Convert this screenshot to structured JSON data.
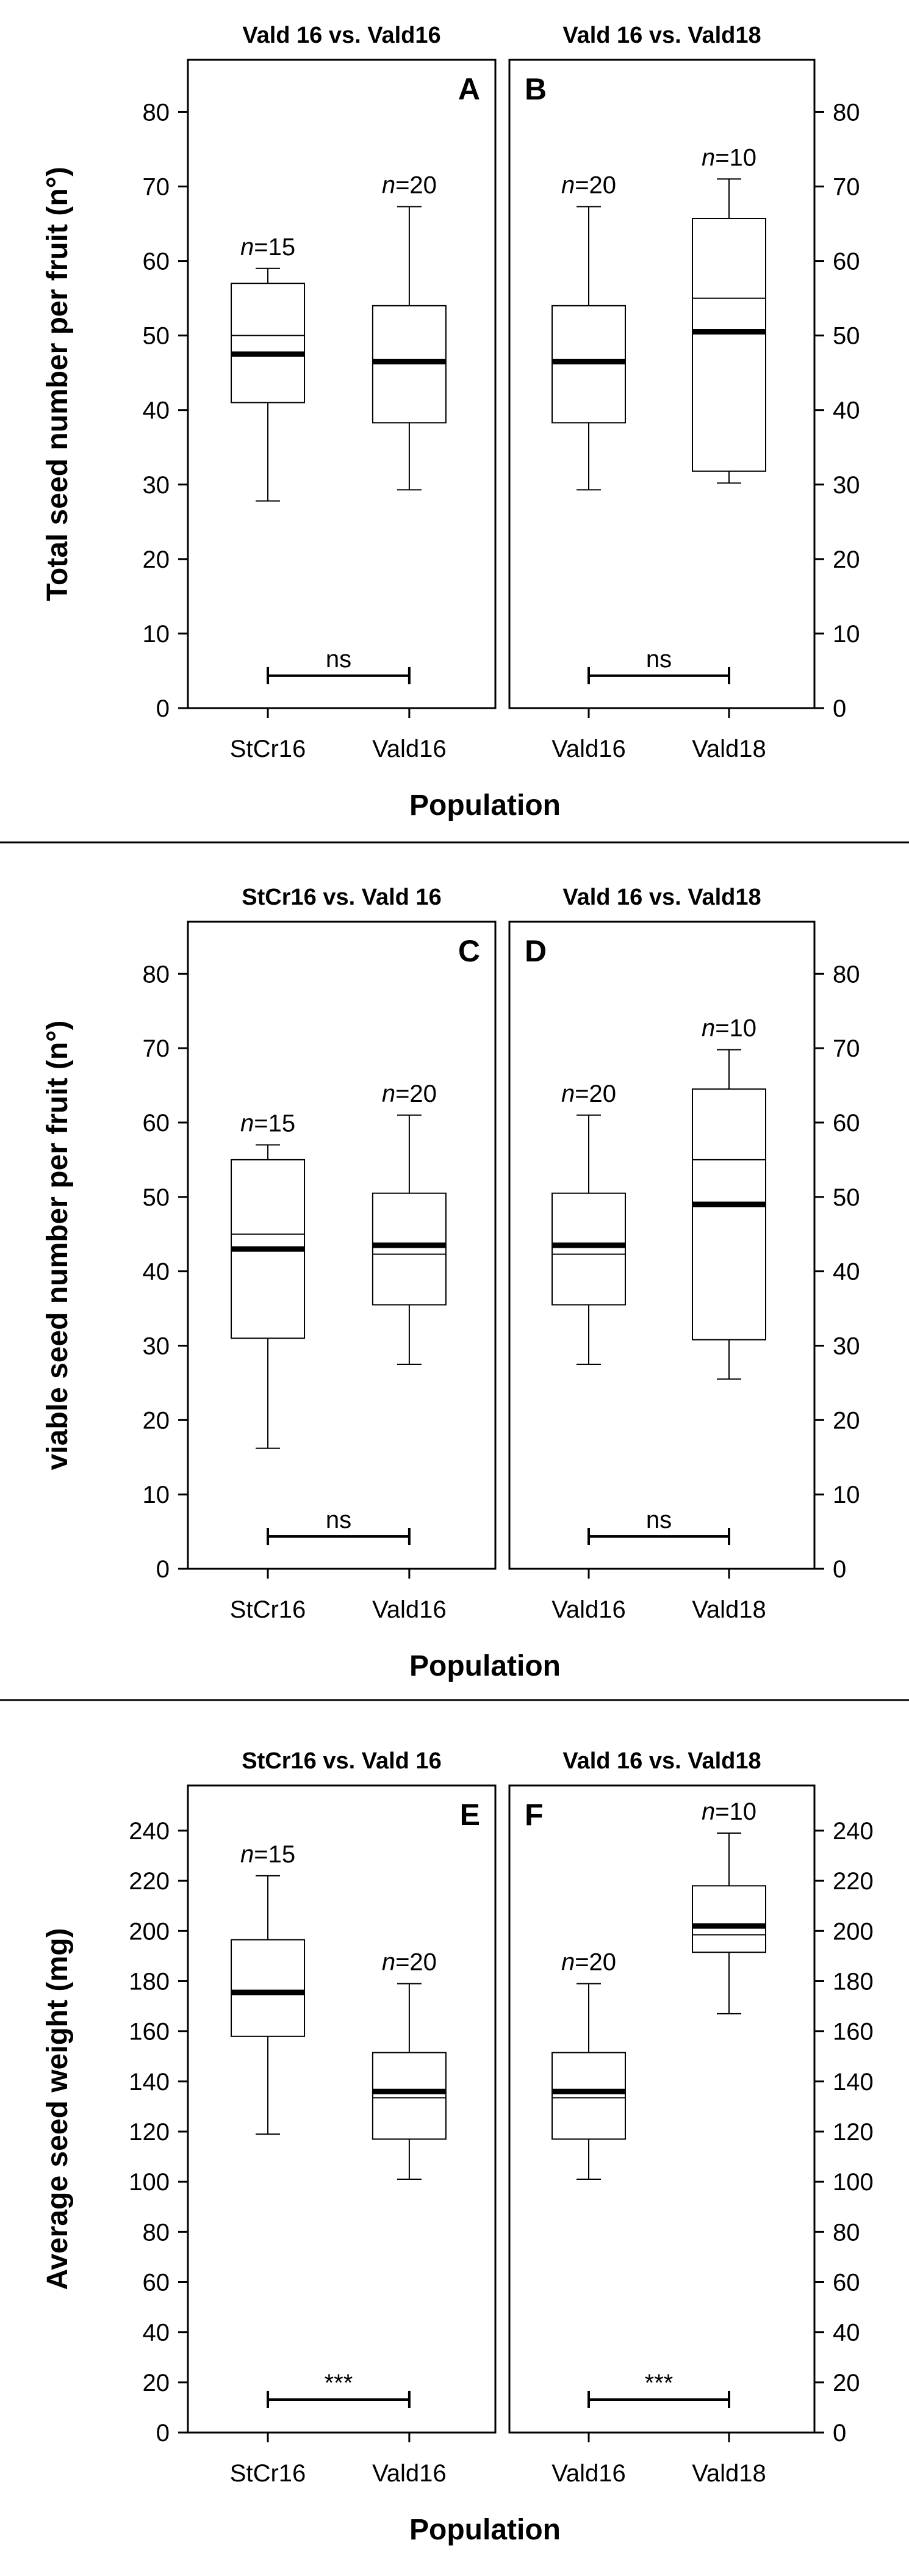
{
  "chart_data": [
    {
      "type": "boxplot",
      "ylabel": "Total seed number per fruit (n°)",
      "xlabel": "Population",
      "ylim": [
        0,
        87
      ],
      "yticks": [
        0,
        10,
        20,
        30,
        40,
        50,
        60,
        70,
        80
      ],
      "panels": [
        {
          "title": "Vald 16 vs. Vald16",
          "letter": "A",
          "significance": "ns",
          "boxes": [
            {
              "category": "StCr16",
              "n_label": "n=15",
              "n_prefix": "n",
              "n_value": "=15",
              "whisker_low": 27.8,
              "q1": 41.0,
              "median": 50.0,
              "mean": 47.5,
              "q3": 57.0,
              "whisker_high": 59.0
            },
            {
              "category": "Vald16",
              "n_label": "n=20",
              "n_prefix": "n",
              "n_value": "=20",
              "whisker_low": 29.3,
              "q1": 38.3,
              "median": 46.5,
              "mean": 46.5,
              "q3": 54.0,
              "whisker_high": 67.3
            }
          ]
        },
        {
          "title": "Vald 16 vs. Vald18",
          "letter": "B",
          "significance": "ns",
          "boxes": [
            {
              "category": "Vald16",
              "n_label": "n=20",
              "n_prefix": "n",
              "n_value": "=20",
              "whisker_low": 29.3,
              "q1": 38.3,
              "median": 46.5,
              "mean": 46.5,
              "q3": 54.0,
              "whisker_high": 67.3
            },
            {
              "category": "Vald18",
              "n_label": "n=10",
              "n_prefix": "n",
              "n_value": "=10",
              "whisker_low": 30.2,
              "q1": 31.8,
              "median": 55.0,
              "mean": 50.5,
              "q3": 65.7,
              "whisker_high": 71.0
            }
          ]
        }
      ]
    },
    {
      "type": "boxplot",
      "ylabel": "viable seed number per fruit (n°)",
      "xlabel": "Population",
      "ylim": [
        0,
        87
      ],
      "yticks": [
        0,
        10,
        20,
        30,
        40,
        50,
        60,
        70,
        80
      ],
      "panels": [
        {
          "title": "StCr16 vs. Vald 16",
          "letter": "C",
          "significance": "ns",
          "boxes": [
            {
              "category": "StCr16",
              "n_label": "n=15",
              "n_prefix": "n",
              "n_value": "=15",
              "whisker_low": 16.2,
              "q1": 31.0,
              "median": 45.0,
              "mean": 43.0,
              "q3": 55.0,
              "whisker_high": 57.0
            },
            {
              "category": "Vald16",
              "n_label": "n=20",
              "n_prefix": "n",
              "n_value": "=20",
              "whisker_low": 27.5,
              "q1": 35.5,
              "median": 42.3,
              "mean": 43.5,
              "q3": 50.5,
              "whisker_high": 61.0
            }
          ]
        },
        {
          "title": "Vald 16 vs. Vald18",
          "letter": "D",
          "significance": "ns",
          "boxes": [
            {
              "category": "Vald16",
              "n_label": "n=20",
              "n_prefix": "n",
              "n_value": "=20",
              "whisker_low": 27.5,
              "q1": 35.5,
              "median": 42.3,
              "mean": 43.5,
              "q3": 50.5,
              "whisker_high": 61.0
            },
            {
              "category": "Vald18",
              "n_label": "n=10",
              "n_prefix": "n",
              "n_value": "=10",
              "whisker_low": 25.5,
              "q1": 30.8,
              "median": 55.0,
              "mean": 49.0,
              "q3": 64.5,
              "whisker_high": 69.8
            }
          ]
        }
      ]
    },
    {
      "type": "boxplot",
      "ylabel": "Average seed weight (mg)",
      "xlabel": "Population",
      "ylim": [
        0,
        258
      ],
      "yticks": [
        0,
        20,
        40,
        60,
        80,
        100,
        120,
        140,
        160,
        180,
        200,
        220,
        240
      ],
      "panels": [
        {
          "title": "StCr16 vs. Vald 16",
          "letter": "E",
          "significance": "***",
          "boxes": [
            {
              "category": "StCr16",
              "n_label": "n=15",
              "n_prefix": "n",
              "n_value": "=15",
              "whisker_low": 119,
              "q1": 158,
              "median": 175,
              "mean": 175.5,
              "q3": 196.5,
              "whisker_high": 222
            },
            {
              "category": "Vald16",
              "n_label": "n=20",
              "n_prefix": "n",
              "n_value": "=20",
              "whisker_low": 101,
              "q1": 117,
              "median": 133.5,
              "mean": 136,
              "q3": 151.5,
              "whisker_high": 179
            }
          ]
        },
        {
          "title": "Vald 16 vs. Vald18",
          "letter": "F",
          "significance": "***",
          "boxes": [
            {
              "category": "Vald16",
              "n_label": "n=20",
              "n_prefix": "n",
              "n_value": "=20",
              "whisker_low": 101,
              "q1": 117,
              "median": 133.5,
              "mean": 136,
              "q3": 151.5,
              "whisker_high": 179
            },
            {
              "category": "Vald18",
              "n_label": "n=10",
              "n_prefix": "n",
              "n_value": "=10",
              "whisker_low": 167,
              "q1": 191.5,
              "median": 198.5,
              "mean": 202,
              "q3": 218,
              "whisker_high": 239
            }
          ]
        }
      ]
    }
  ]
}
